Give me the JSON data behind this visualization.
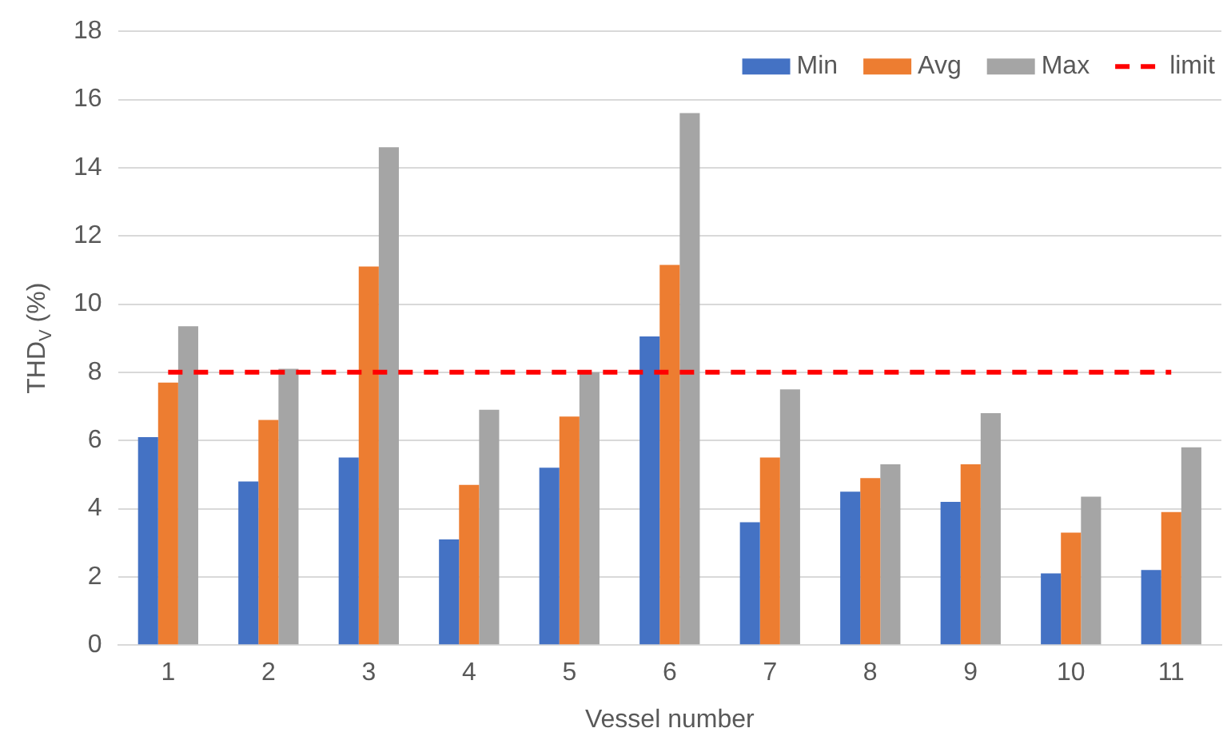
{
  "chart_data": {
    "type": "bar",
    "xlabel": "Vessel number",
    "ylabel": "THD$_{V}$ (%)",
    "categories": [
      "1",
      "2",
      "3",
      "4",
      "5",
      "6",
      "7",
      "8",
      "9",
      "10",
      "11"
    ],
    "series": [
      {
        "name": "Min",
        "color": "#4472c4",
        "values": [
          6.1,
          4.8,
          5.5,
          3.1,
          5.2,
          9.05,
          3.6,
          4.5,
          4.2,
          2.1,
          2.2
        ]
      },
      {
        "name": "Avg",
        "color": "#ed7d31",
        "values": [
          7.7,
          6.6,
          11.1,
          4.7,
          6.7,
          11.15,
          5.5,
          4.9,
          5.3,
          3.3,
          3.9
        ]
      },
      {
        "name": "Max",
        "color": "#a5a5a5",
        "values": [
          9.35,
          8.1,
          14.6,
          6.9,
          8.0,
          15.6,
          7.5,
          5.3,
          6.8,
          4.35,
          5.8
        ]
      },
      {
        "name": "limit",
        "type": "line",
        "color": "#ff0000",
        "line_style": "dashed",
        "marker": "none",
        "values": [
          8,
          8,
          8,
          8,
          8,
          8,
          8,
          8,
          8,
          8,
          8
        ]
      }
    ],
    "ylim": [
      0,
      18
    ],
    "yticks": [
      0,
      2,
      4,
      6,
      8,
      10,
      12,
      14,
      16,
      18
    ],
    "grid": "y",
    "legend": "top right"
  }
}
